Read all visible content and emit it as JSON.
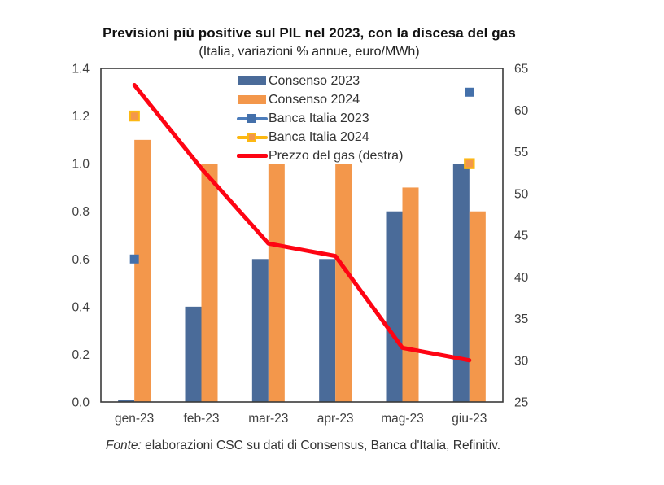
{
  "chart_data": {
    "type": "combo",
    "title": "Previsioni più positive sul PIL nel 2023, con la discesa del gas",
    "subtitle": "(Italia, variazioni % annue, euro/MWh)",
    "categories": [
      "gen-23",
      "feb-23",
      "mar-23",
      "apr-23",
      "mag-23",
      "giu-23"
    ],
    "series": [
      {
        "name": "Consenso 2023",
        "type": "bar",
        "axis": "left",
        "color": "#4a6b99",
        "values": [
          0.01,
          0.4,
          0.6,
          0.6,
          0.8,
          1.0
        ]
      },
      {
        "name": "Consenso 2024",
        "type": "bar",
        "axis": "left",
        "color": "#f3974b",
        "values": [
          1.1,
          1.0,
          1.0,
          1.0,
          0.9,
          0.8
        ]
      },
      {
        "name": "Banca Italia 2023",
        "type": "point",
        "axis": "left",
        "line_color": "#4d7dbb",
        "marker_color": "#4470aa",
        "values": [
          0.6,
          null,
          null,
          null,
          null,
          1.3
        ]
      },
      {
        "name": "Banca Italia 2024",
        "type": "point",
        "axis": "left",
        "line_color": "#fcb813",
        "marker_color": "#f3974b",
        "marker_border": "#fcb813",
        "values": [
          1.2,
          null,
          null,
          null,
          null,
          1.0
        ]
      },
      {
        "name": "Prezzo del gas (destra)",
        "type": "line",
        "axis": "right",
        "color": "#fe0413",
        "values": [
          63,
          53,
          44,
          42.5,
          31.5,
          30
        ]
      }
    ],
    "left_axis": {
      "min": 0,
      "max": 1.4,
      "ticks": [
        "0.0",
        "0.2",
        "0.4",
        "0.6",
        "0.8",
        "1.0",
        "1.2",
        "1.4"
      ]
    },
    "right_axis": {
      "min": 25,
      "max": 65,
      "ticks": [
        "25",
        "30",
        "35",
        "40",
        "45",
        "50",
        "55",
        "60",
        "65"
      ]
    },
    "legend_position": "top-center",
    "grid": false
  },
  "footer": {
    "source_label": "Fonte:",
    "source_text": " elaborazioni CSC su dati di Consensus, Banca d'Italia, Refinitiv."
  }
}
